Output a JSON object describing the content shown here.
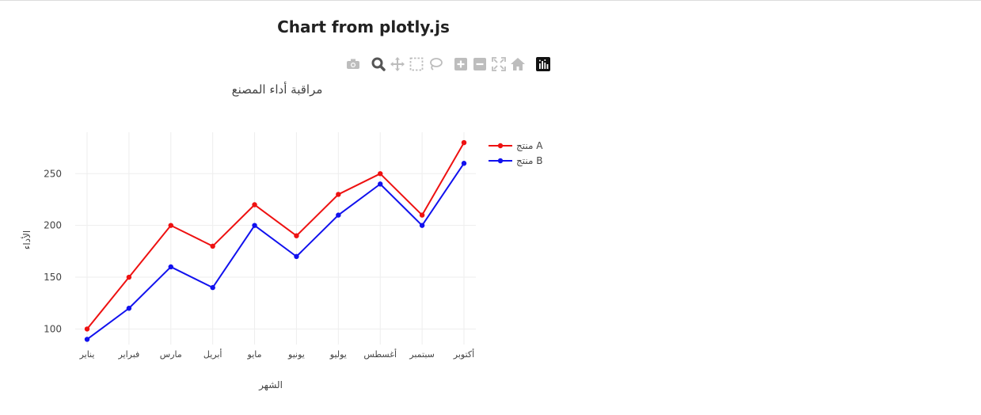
{
  "page": {
    "title": "Chart from plotly.js"
  },
  "modebar": {
    "icons": [
      "camera-icon",
      "zoom-icon",
      "pan-icon",
      "box-select-icon",
      "lasso-select-icon",
      "zoom-in-icon",
      "zoom-out-icon",
      "autoscale-icon",
      "reset-axes-icon",
      "plotly-logo-icon"
    ],
    "icon_color": "#bdbdbd",
    "active_color": "#555555"
  },
  "chart_data": {
    "type": "line",
    "title": "مراقبة أداء المصنع",
    "xlabel": "الشهر",
    "ylabel": "الأداء",
    "categories": [
      "يناير",
      "فبراير",
      "مارس",
      "أبريل",
      "مايو",
      "يونيو",
      "يوليو",
      "أغسطس",
      "سبتمبر",
      "أكتوبر"
    ],
    "ylim": [
      85,
      290
    ],
    "yticks": [
      100,
      150,
      200,
      250
    ],
    "grid": true,
    "legend_position": "top-right",
    "series": [
      {
        "name": "منتج A",
        "color": "#ee1111",
        "values": [
          100,
          150,
          200,
          180,
          220,
          190,
          230,
          250,
          210,
          280
        ]
      },
      {
        "name": "منتج B",
        "color": "#1111ee",
        "values": [
          90,
          120,
          160,
          140,
          200,
          170,
          210,
          240,
          200,
          260
        ]
      }
    ]
  }
}
